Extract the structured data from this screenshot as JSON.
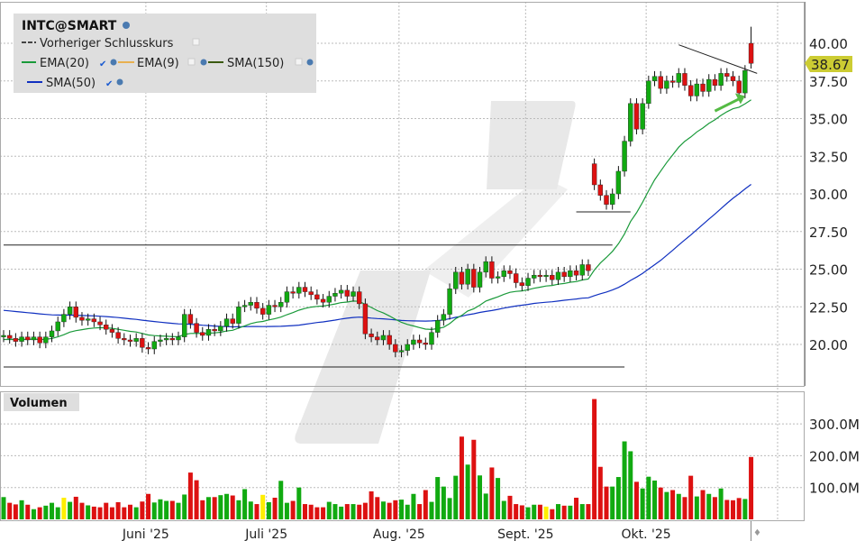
{
  "chart_data": {
    "type": "candlestick",
    "title": "INTC@SMART",
    "legend": {
      "placement": "top-left",
      "items": [
        {
          "label": "Vorheriger Schlusskurs",
          "color": "#444444",
          "style": "dashed",
          "checked": false
        },
        {
          "label": "EMA(20)",
          "color": "#1a9a3a",
          "checked": true
        },
        {
          "label": "EMA(9)",
          "color": "#e8b050",
          "checked": false
        },
        {
          "label": "SMA(150)",
          "color": "#3a5a10",
          "checked": false
        },
        {
          "label": "SMA(50)",
          "color": "#1030c0",
          "checked": true
        }
      ]
    },
    "x_tick_labels": [
      {
        "label": "Juni '25",
        "bar": 23
      },
      {
        "label": "Juli '25",
        "bar": 43
      },
      {
        "label": "Aug. '25",
        "bar": 65
      },
      {
        "label": "Sept. '25",
        "bar": 86
      },
      {
        "label": "Okt. '25",
        "bar": 106
      }
    ],
    "y_ticks": [
      "20.00",
      "22.50",
      "25.00",
      "27.50",
      "30.00",
      "32.50",
      "35.00",
      "37.50",
      "40.00"
    ],
    "ylim": [
      18,
      42
    ],
    "last_price": "38.67",
    "close": [
      20.6,
      20.4,
      20.2,
      20.5,
      20.3,
      20.5,
      20.1,
      20.5,
      20.9,
      21.5,
      22.0,
      22.5,
      21.8,
      21.6,
      21.7,
      21.5,
      21.3,
      21.0,
      20.8,
      20.4,
      20.3,
      20.2,
      20.4,
      19.8,
      19.7,
      20.2,
      20.3,
      20.4,
      20.3,
      20.5,
      22.0,
      21.4,
      20.8,
      20.6,
      21.0,
      20.9,
      21.2,
      21.7,
      21.4,
      22.5,
      22.6,
      22.8,
      22.4,
      22.0,
      22.6,
      22.5,
      22.8,
      23.5,
      23.4,
      23.8,
      23.5,
      23.3,
      23.0,
      22.8,
      23.2,
      23.4,
      23.6,
      23.2,
      23.5,
      22.7,
      20.7,
      20.5,
      20.3,
      20.6,
      20.0,
      19.5,
      19.6,
      20.0,
      20.3,
      20.1,
      20.0,
      20.8,
      21.6,
      22.0,
      23.7,
      24.8,
      24.0,
      25.0,
      23.8,
      24.8,
      25.5,
      24.4,
      24.5,
      24.9,
      24.7,
      24.1,
      23.9,
      24.4,
      24.6,
      24.5,
      24.6,
      24.3,
      24.8,
      24.5,
      24.9,
      24.6,
      25.3,
      24.9,
      30.6,
      29.9,
      29.3,
      30.0,
      31.5,
      33.5,
      36.0,
      34.3,
      36.0,
      37.5,
      37.8,
      37.0,
      37.5,
      37.4,
      38.0,
      37.2,
      36.5,
      37.3,
      36.8,
      37.6,
      37.2,
      38.0,
      37.8,
      37.5,
      36.7,
      38.2,
      38.67
    ],
    "gap_opens": {
      "98": 32.0,
      "124": 40.0
    },
    "last_high": 41.1,
    "volume_panel": {
      "title": "Volumen",
      "y_ticks": [
        "100.0M",
        "200.0M",
        "300.0M"
      ],
      "ylim_millions": [
        0,
        400
      ],
      "values_millions": [
        70,
        52,
        47,
        60,
        46,
        32,
        38,
        43,
        52,
        38,
        68,
        55,
        71,
        52,
        44,
        40,
        38,
        52,
        38,
        54,
        38,
        46,
        38,
        56,
        80,
        53,
        63,
        58,
        58,
        52,
        78,
        147,
        123,
        60,
        70,
        70,
        76,
        80,
        75,
        60,
        95,
        56,
        48,
        77,
        54,
        68,
        121,
        52,
        58,
        100,
        48,
        46,
        38,
        38,
        55,
        48,
        40,
        48,
        48,
        46,
        52,
        88,
        70,
        56,
        52,
        60,
        62,
        46,
        80,
        48,
        92,
        55,
        133,
        103,
        67,
        137,
        260,
        172,
        250,
        138,
        81,
        163,
        130,
        58,
        74,
        48,
        44,
        38,
        46,
        46,
        40,
        32,
        48,
        43,
        43,
        68,
        48,
        48,
        378,
        165,
        103,
        103,
        133,
        245,
        214,
        118,
        97,
        134,
        122,
        100,
        86,
        92,
        80,
        70,
        137,
        72,
        92,
        80,
        70,
        97,
        61,
        60,
        67,
        64,
        196
      ],
      "unchanged_bars": [
        10,
        43,
        90
      ]
    },
    "annotations": [
      {
        "type": "hline",
        "price": 26.6,
        "from_bar": 0,
        "to_bar": 101
      },
      {
        "type": "hline",
        "price": 18.5,
        "from_bar": 0,
        "to_bar": 103
      },
      {
        "type": "hline",
        "price": 28.8,
        "from_bar": 95,
        "to_bar": 104
      },
      {
        "type": "trendline",
        "from": [
          112,
          39.9
        ],
        "to": [
          125,
          38.0
        ]
      },
      {
        "type": "arrow",
        "color": "#55bb44",
        "from": [
          118,
          35.5
        ],
        "to": [
          123,
          36.5
        ]
      }
    ],
    "colors": {
      "up": "#11aa11",
      "down": "#dd1111",
      "unchanged": "#ffee00",
      "last_price_bg": "#cccc33"
    }
  }
}
